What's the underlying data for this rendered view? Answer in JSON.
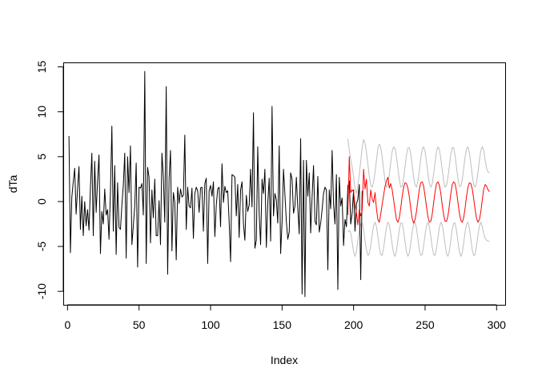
{
  "chart_data": {
    "type": "line",
    "title": "",
    "xlabel": "Index",
    "ylabel": "dTa",
    "xlim": [
      -3,
      306
    ],
    "ylim": [
      -11.5,
      15.5
    ],
    "x_ticks": [
      0,
      50,
      100,
      150,
      200,
      250,
      300
    ],
    "y_ticks": [
      -10,
      -5,
      0,
      5,
      10,
      15
    ],
    "grid": false,
    "legend": "none",
    "colors": {
      "observed": "#000000",
      "forecast": "#ff0000",
      "interval": "#bebebe"
    },
    "series": [
      {
        "role": "observed",
        "x_start": 1,
        "values": [
          7.3,
          -5.7,
          0.5,
          2.2,
          3.7,
          -1.4,
          1.4,
          3.9,
          -3.1,
          0.6,
          -3.8,
          0.0,
          -2.7,
          -0.9,
          -3.2,
          1.5,
          5.4,
          -3.8,
          4.5,
          -1.2,
          2.3,
          5.2,
          -5.8,
          -1.1,
          -2.5,
          1.4,
          -1.5,
          -0.9,
          -4.2,
          1.1,
          8.4,
          -3.3,
          4.0,
          -5.9,
          2.1,
          -2.9,
          -3.1,
          -0.4,
          1.8,
          5.4,
          -6.3,
          5.0,
          1.0,
          6.2,
          -4.8,
          -2.7,
          -0.5,
          4.3,
          -7.3,
          1.6,
          1.5,
          2.0,
          -1.5,
          14.5,
          -6.9,
          3.8,
          2.7,
          -4.6,
          1.3,
          -1.8,
          2.5,
          -3.8,
          -3.8,
          0.1,
          -4.8,
          5.4,
          2.8,
          -2.3,
          12.8,
          -8.1,
          2.5,
          5.7,
          -5.5,
          1.0,
          -0.1,
          -6.5,
          1.6,
          -0.2,
          1.4,
          0.5,
          0.7,
          7.4,
          -3.1,
          1.6,
          -0.5,
          -0.7,
          1.5,
          -4.1,
          0.9,
          1.6,
          1.2,
          -1.2,
          1.5,
          1.6,
          -3.3,
          2.0,
          2.6,
          -6.9,
          1.2,
          1.8,
          0.6,
          2.2,
          -3.9,
          -0.4,
          1.4,
          1.6,
          -2.8,
          4.2,
          -0.1,
          1.7,
          1.0,
          1.2,
          -2.2,
          -6.7,
          3.0,
          2.9,
          2.7,
          -1.6,
          1.9,
          -4.0,
          1.3,
          2.2,
          -2.5,
          -4.3,
          0.7,
          -1.1,
          -0.4,
          3.6,
          -0.6,
          9.9,
          -5.2,
          -4.3,
          6.1,
          -1.4,
          -4.8,
          2.5,
          0.9,
          3.6,
          -5.1,
          -0.2,
          2.6,
          -4.4,
          10.6,
          -1.6,
          0.9,
          0.2,
          -2.4,
          6.2,
          -5.8,
          -2.3,
          3.6,
          0.8,
          -2.2,
          -4.2,
          -3.4,
          3.2,
          2.5,
          -1.3,
          -0.5,
          2.7,
          -0.7,
          -3.6,
          7.0,
          -10.3,
          4.6,
          -10.6,
          4.6,
          0.6,
          3.2,
          -3.5,
          0.5,
          4.0,
          -2.2,
          -2.6,
          2.8,
          -3.4,
          -2.4,
          -0.9,
          0.9,
          1.6,
          1.3,
          -7.6,
          1.3,
          -0.8,
          5.7,
          -0.3,
          -2.5,
          3.0,
          -9.8,
          2.7,
          -0.5,
          0.4,
          -4.9,
          -2.0,
          -2.8,
          1.7,
          2.3,
          -2.5,
          -1.3,
          1.3,
          -3.3,
          -0.3,
          0.3,
          1.9,
          -8.7,
          1.2
        ]
      },
      {
        "role": "forecast",
        "x_start": 196,
        "values": [
          -1.5,
          5.0,
          1.0,
          1.3,
          1.1,
          -0.4,
          -1.3,
          -2.6,
          -0.9,
          -1.6,
          -1.0,
          3.6,
          1.4,
          2.5,
          -0.1,
          -0.5,
          1.3,
          0.3,
          -0.1,
          1.0,
          -0.8,
          -2.0,
          -2.3,
          -1.4,
          -0.3,
          0.7,
          1.7,
          2.3,
          2.7,
          1.5,
          2.0,
          1.3,
          0.2,
          -1.0,
          -2.0,
          -2.3,
          -1.8,
          -0.7,
          0.6,
          1.6,
          2.1,
          2.0,
          1.5,
          0.5,
          -0.8,
          -1.9,
          -2.4,
          -2.0,
          -1.1,
          0.2,
          1.4,
          2.1,
          2.2,
          1.7,
          0.6,
          -0.6,
          -1.7,
          -2.3,
          -2.2,
          -1.4,
          -0.1,
          1.1,
          2.0,
          2.2,
          1.8,
          0.9,
          -0.4,
          -1.5,
          -2.2,
          -2.2,
          -1.6,
          -0.4,
          0.9,
          1.9,
          2.2,
          2.0,
          1.1,
          -0.1,
          -1.3,
          -2.1,
          -2.3,
          -1.8,
          -0.7,
          0.6,
          1.6,
          2.1,
          2.0,
          1.4,
          0.3,
          -0.9,
          -1.9,
          -2.3,
          -2.0,
          -1.1,
          0.2,
          1.4,
          1.9,
          1.7,
          1.3,
          1.1
        ]
      },
      {
        "role": "upper_interval",
        "x_start": 196,
        "values": [
          7.0,
          5.7,
          4.7,
          3.9,
          2.8,
          1.4,
          0.9,
          1.8,
          3.0,
          4.5,
          6.0,
          6.9,
          6.5,
          5.5,
          4.2,
          2.8,
          1.8,
          1.6,
          2.2,
          3.3,
          4.6,
          6.0,
          6.4,
          6.0,
          5.0,
          3.6,
          2.3,
          1.6,
          1.9,
          3.0,
          4.4,
          5.6,
          6.1,
          5.9,
          5.0,
          3.7,
          2.4,
          1.6,
          1.7,
          2.6,
          3.9,
          5.2,
          6.0,
          6.0,
          5.3,
          4.0,
          2.7,
          1.8,
          1.6,
          2.3,
          3.5,
          4.8,
          5.8,
          6.1,
          5.6,
          4.4,
          3.1,
          2.0,
          1.6,
          2.0,
          3.1,
          4.4,
          5.6,
          6.1,
          5.8,
          4.8,
          3.5,
          2.3,
          1.6,
          1.8,
          2.7,
          4.0,
          5.3,
          6.0,
          6.0,
          5.1,
          3.8,
          2.5,
          1.7,
          1.7,
          2.4,
          3.7,
          5.0,
          5.9,
          6.1,
          5.4,
          4.2,
          2.9,
          1.9,
          1.6,
          2.1,
          3.3,
          4.6,
          5.7,
          6.1,
          5.7,
          4.6,
          3.7,
          3.3,
          3.2
        ]
      },
      {
        "role": "lower_interval",
        "x_start": 196,
        "values": [
          -3.4,
          -3.2,
          -3.5,
          -4.5,
          -5.6,
          -6.1,
          -5.6,
          -4.3,
          -3.3,
          -2.5,
          -2.4,
          -3.1,
          -4.3,
          -5.4,
          -6.0,
          -5.8,
          -4.9,
          -3.7,
          -2.7,
          -2.3,
          -2.8,
          -3.9,
          -5.1,
          -5.9,
          -6.0,
          -5.2,
          -4.0,
          -2.9,
          -2.3,
          -2.6,
          -3.6,
          -4.8,
          -5.8,
          -6.1,
          -5.5,
          -4.3,
          -3.1,
          -2.4,
          -2.4,
          -3.3,
          -4.5,
          -5.6,
          -6.1,
          -5.7,
          -4.6,
          -3.4,
          -2.5,
          -2.3,
          -3.0,
          -4.2,
          -5.4,
          -6.0,
          -5.9,
          -4.9,
          -3.7,
          -2.7,
          -2.3,
          -2.8,
          -3.9,
          -5.1,
          -5.9,
          -6.0,
          -5.2,
          -4.0,
          -2.9,
          -2.3,
          -2.6,
          -3.6,
          -4.8,
          -5.8,
          -6.1,
          -5.5,
          -4.3,
          -3.1,
          -2.4,
          -2.4,
          -3.3,
          -4.5,
          -5.6,
          -6.1,
          -5.7,
          -4.6,
          -3.4,
          -2.5,
          -2.3,
          -3.0,
          -4.2,
          -5.4,
          -6.0,
          -5.9,
          -4.9,
          -3.7,
          -2.7,
          -2.3,
          -2.8,
          -3.6,
          -4.1,
          -4.3,
          -4.4,
          -4.4
        ]
      }
    ]
  }
}
